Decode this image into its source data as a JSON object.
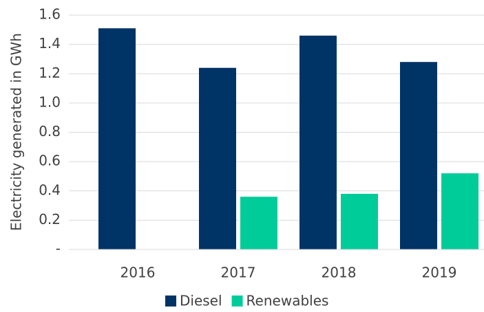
{
  "chart_data": {
    "type": "bar",
    "y_label": "Electricity generated in GWh",
    "categories": [
      "2016",
      "2017",
      "2018",
      "2019"
    ],
    "series": [
      {
        "name": "Diesel",
        "color": "#003366",
        "values": [
          1.51,
          1.24,
          1.46,
          1.28
        ]
      },
      {
        "name": "Renewables",
        "color": "#00cc99",
        "values": [
          0,
          0.36,
          0.38,
          0.52
        ]
      }
    ],
    "ylim": [
      0,
      1.6
    ],
    "yticks": [
      {
        "value": 0,
        "label": "-"
      },
      0.2,
      0.4,
      0.6,
      0.8,
      {
        "value": 1,
        "label": "1.0"
      },
      1.2,
      1.4,
      1.6
    ],
    "grid": true,
    "legend": "bottom"
  }
}
